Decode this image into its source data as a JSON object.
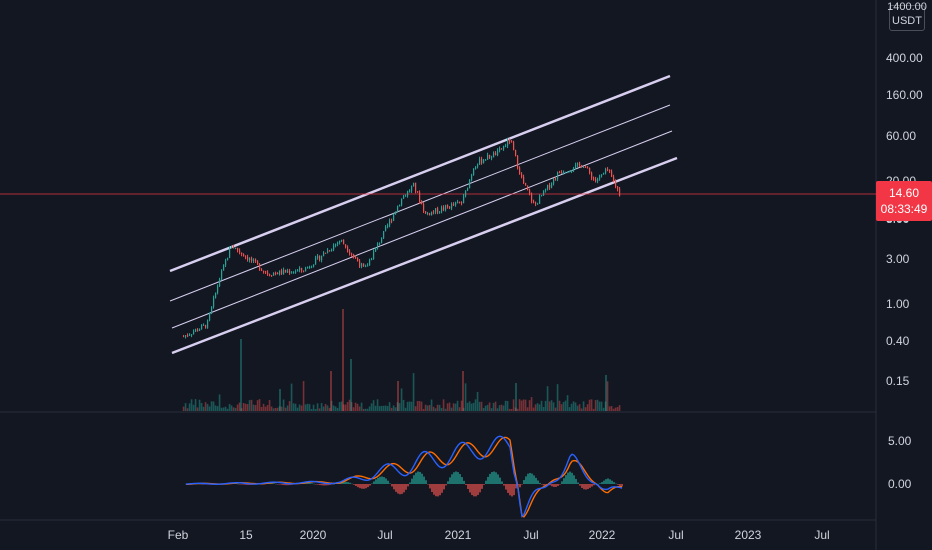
{
  "header": {
    "currency_top": "1400.00",
    "currency_unit": "USDT"
  },
  "price_badge": {
    "price": "14.60",
    "countdown": "08:33:49"
  },
  "colors": {
    "background": "#131722",
    "grid": "#1e222d",
    "up": "#26a69a",
    "down": "#ef5350",
    "channel": "#d8cff0",
    "price_line": "#f23645",
    "macd_line": "#2962ff",
    "signal_line": "#ff6d00"
  },
  "chart_data": [
    {
      "type": "line",
      "scale": "log",
      "y_tick_labels": [
        "400.00",
        "160.00",
        "60.00",
        "20.00",
        "8.00",
        "3.00",
        "1.00",
        "0.40",
        "0.15"
      ],
      "x_tick_labels": [
        "Feb",
        "15",
        "2020",
        "Jul",
        "2021",
        "Jul",
        "2022",
        "Jul",
        "2023",
        "Jul"
      ],
      "last_price": 14.6,
      "price_series": {
        "x": [
          "2019-02",
          "2019-04",
          "2019-05",
          "2019-06",
          "2019-09",
          "2019-12",
          "2020-03",
          "2020-05",
          "2020-08",
          "2020-09",
          "2020-10",
          "2021-01",
          "2021-02",
          "2021-03",
          "2021-04",
          "2021-05",
          "2021-06",
          "2021-07",
          "2021-09",
          "2021-11",
          "2021-12",
          "2022-01",
          "2022-02"
        ],
        "y": [
          0.45,
          0.6,
          1.8,
          4.2,
          2.1,
          2.3,
          4.8,
          2.3,
          13,
          18,
          9,
          12,
          30,
          35,
          40,
          55,
          20,
          11,
          25,
          30,
          20,
          26,
          14.6
        ]
      },
      "channel_lines": 4,
      "volume": "shown as histogram under price"
    },
    {
      "type": "line",
      "name": "oscillator",
      "y_tick_labels": [
        "5.00",
        "0.00"
      ],
      "series": [
        {
          "name": "",
          "x": [
            "2019-02",
            "2020-03",
            "2021-02",
            "2021-05",
            "2021-06",
            "2021-10",
            "2022-01",
            "2022-02"
          ],
          "values": [
            0,
            0.2,
            4.0,
            4.5,
            -3.0,
            2.5,
            -1.0,
            -0.5
          ]
        }
      ]
    }
  ]
}
